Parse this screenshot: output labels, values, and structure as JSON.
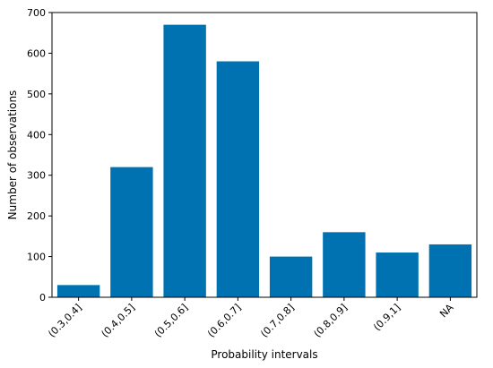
{
  "chart_data": {
    "type": "bar",
    "categories": [
      "(0.3,0.4]",
      "(0.4,0.5]",
      "(0.5,0.6]",
      "(0.6,0.7]",
      "(0.7,0.8]",
      "(0.8,0.9]",
      "(0.9,1]",
      "NA"
    ],
    "values": [
      30,
      320,
      670,
      580,
      100,
      160,
      110,
      130
    ],
    "title": "",
    "xlabel": "Probability intervals",
    "ylabel": "Number of observations",
    "ylim": [
      0,
      700
    ],
    "yticks": [
      0,
      100,
      200,
      300,
      400,
      500,
      600,
      700
    ],
    "bar_color": "#0072b2",
    "grid": false
  }
}
